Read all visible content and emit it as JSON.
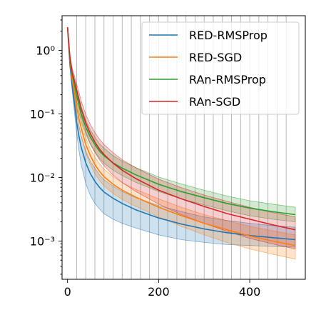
{
  "chart_data": {
    "type": "line",
    "title": "",
    "xlabel": "",
    "ylabel": "",
    "xlim": [
      -12,
      522
    ],
    "ylim": [
      0.00025,
      3.5
    ],
    "yscale": "log",
    "xticks": [
      {
        "value": 0,
        "label": "0"
      },
      {
        "value": 200,
        "label": "200"
      },
      {
        "value": 400,
        "label": "400"
      }
    ],
    "yticks": [
      {
        "value": 0.001,
        "label": "10⁻³"
      },
      {
        "value": 0.01,
        "label": "10⁻²"
      },
      {
        "value": 0.1,
        "label": "10⁻¹"
      },
      {
        "value": 1,
        "label": "10⁰"
      }
    ],
    "vertical_gridlines_x": [
      20,
      40,
      60,
      80,
      100,
      120,
      140,
      160,
      180,
      200,
      220,
      240,
      260,
      280,
      300,
      320,
      340,
      360,
      380,
      400,
      420,
      440,
      460,
      480
    ],
    "legend_position": "upper right",
    "series": [
      {
        "name": "RED-RMSProp",
        "color": "#1f77b4",
        "x": [
          0,
          5,
          10,
          15,
          20,
          25,
          30,
          40,
          50,
          60,
          70,
          80,
          100,
          120,
          150,
          200,
          250,
          300,
          350,
          400,
          450,
          500
        ],
        "mean": [
          2.3,
          0.62,
          0.29,
          0.15,
          0.075,
          0.045,
          0.03,
          0.017,
          0.0115,
          0.0087,
          0.007,
          0.0059,
          0.0047,
          0.0039,
          0.0031,
          0.0023,
          0.00185,
          0.00155,
          0.00135,
          0.00122,
          0.00113,
          0.00105
        ],
        "lower": [
          2.3,
          0.55,
          0.24,
          0.11,
          0.05,
          0.027,
          0.016,
          0.008,
          0.0052,
          0.0039,
          0.0032,
          0.0027,
          0.0022,
          0.0019,
          0.0016,
          0.00125,
          0.00105,
          0.00095,
          0.00088,
          0.00085,
          0.00082,
          0.0008
        ],
        "upper": [
          2.3,
          0.7,
          0.35,
          0.19,
          0.1,
          0.065,
          0.045,
          0.026,
          0.018,
          0.014,
          0.011,
          0.0092,
          0.0073,
          0.006,
          0.0048,
          0.0036,
          0.0029,
          0.0024,
          0.0021,
          0.0019,
          0.00175,
          0.00165
        ]
      },
      {
        "name": "RED-SGD",
        "color": "#ff7f0e",
        "x": [
          0,
          5,
          10,
          15,
          20,
          25,
          30,
          40,
          50,
          60,
          70,
          80,
          100,
          120,
          150,
          200,
          250,
          300,
          350,
          400,
          450,
          500
        ],
        "mean": [
          2.3,
          0.7,
          0.36,
          0.22,
          0.13,
          0.085,
          0.06,
          0.033,
          0.022,
          0.016,
          0.0125,
          0.0103,
          0.0078,
          0.0063,
          0.0049,
          0.0034,
          0.0025,
          0.0019,
          0.0015,
          0.0012,
          0.001,
          0.00085
        ],
        "lower": [
          2.3,
          0.62,
          0.3,
          0.18,
          0.1,
          0.065,
          0.045,
          0.024,
          0.016,
          0.0115,
          0.009,
          0.0074,
          0.0056,
          0.0045,
          0.0035,
          0.0024,
          0.0017,
          0.00125,
          0.00095,
          0.00075,
          0.00062,
          0.00052
        ],
        "upper": [
          2.3,
          0.8,
          0.43,
          0.27,
          0.16,
          0.105,
          0.075,
          0.042,
          0.028,
          0.021,
          0.0165,
          0.0135,
          0.0103,
          0.0083,
          0.0065,
          0.0046,
          0.0034,
          0.0026,
          0.0021,
          0.0017,
          0.00145,
          0.00125
        ]
      },
      {
        "name": "RAn-RMSProp",
        "color": "#2ca02c",
        "x": [
          0,
          5,
          10,
          15,
          20,
          25,
          30,
          40,
          50,
          60,
          70,
          80,
          100,
          120,
          150,
          200,
          250,
          300,
          350,
          400,
          450,
          500
        ],
        "mean": [
          2.3,
          0.75,
          0.42,
          0.3,
          0.2,
          0.14,
          0.1,
          0.062,
          0.043,
          0.033,
          0.026,
          0.022,
          0.017,
          0.014,
          0.011,
          0.0078,
          0.006,
          0.0048,
          0.0039,
          0.0033,
          0.0029,
          0.0026
        ],
        "lower": [
          2.3,
          0.68,
          0.37,
          0.25,
          0.16,
          0.11,
          0.078,
          0.048,
          0.033,
          0.025,
          0.02,
          0.0168,
          0.013,
          0.0107,
          0.0084,
          0.006,
          0.0046,
          0.0037,
          0.003,
          0.0025,
          0.0022,
          0.002
        ],
        "upper": [
          2.3,
          0.84,
          0.48,
          0.36,
          0.25,
          0.18,
          0.13,
          0.08,
          0.056,
          0.043,
          0.034,
          0.029,
          0.022,
          0.018,
          0.0143,
          0.0102,
          0.0079,
          0.0063,
          0.0051,
          0.0043,
          0.0038,
          0.0034
        ]
      },
      {
        "name": "RAn-SGD",
        "color": "#d62728",
        "x": [
          0,
          5,
          10,
          15,
          20,
          25,
          30,
          40,
          50,
          60,
          70,
          80,
          100,
          120,
          150,
          200,
          250,
          300,
          350,
          400,
          450,
          500
        ],
        "mean": [
          2.3,
          0.8,
          0.46,
          0.33,
          0.24,
          0.17,
          0.12,
          0.072,
          0.049,
          0.036,
          0.028,
          0.023,
          0.0168,
          0.013,
          0.0096,
          0.0063,
          0.0046,
          0.0035,
          0.0027,
          0.0022,
          0.0018,
          0.0015
        ],
        "lower": [
          2.3,
          0.72,
          0.4,
          0.28,
          0.19,
          0.13,
          0.09,
          0.052,
          0.034,
          0.025,
          0.019,
          0.0153,
          0.0109,
          0.0083,
          0.006,
          0.0038,
          0.0026,
          0.0019,
          0.00142,
          0.0011,
          0.0009,
          0.00075
        ],
        "upper": [
          2.3,
          0.9,
          0.53,
          0.4,
          0.3,
          0.22,
          0.16,
          0.098,
          0.068,
          0.051,
          0.04,
          0.033,
          0.0245,
          0.019,
          0.0142,
          0.0094,
          0.0069,
          0.0053,
          0.0042,
          0.0034,
          0.0028,
          0.0024
        ]
      }
    ]
  }
}
